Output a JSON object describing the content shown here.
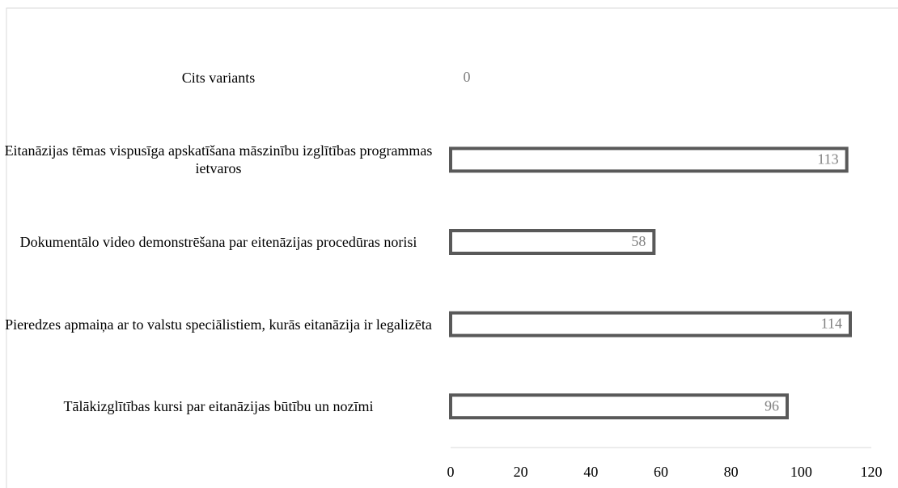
{
  "chart_data": {
    "type": "bar",
    "orientation": "horizontal",
    "categories": [
      "Cits variants",
      "Eitanāzijas tēmas vispusīga apskatīšana māszinību izglītības programmas ietvaros",
      "Dokumentālo video demonstrēšana par eitenāzijas procedūras norisi",
      "Pieredzes apmaiņa ar to valstu speciālistiem, kurās eitanāzija ir legalizēta",
      "Tālākizglītības kursi par eitanāzijas būtību un nozīmi"
    ],
    "values": [
      0,
      113,
      58,
      114,
      96
    ],
    "color": "#595959",
    "xlim": [
      0,
      120
    ],
    "xticks": [
      0,
      20,
      40,
      60,
      80,
      100,
      120
    ],
    "grid": false
  }
}
